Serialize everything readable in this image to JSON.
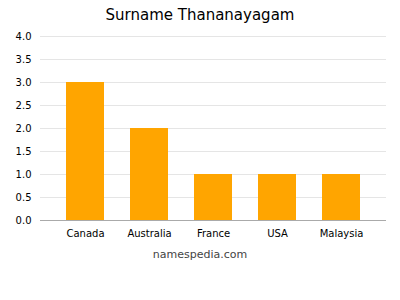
{
  "chart_data": {
    "type": "bar",
    "title": "Surname Thananayagam",
    "categories": [
      "Canada",
      "Australia",
      "France",
      "USA",
      "Malaysia"
    ],
    "values": [
      3,
      2,
      1,
      1,
      1
    ],
    "color": "#FFA500",
    "ylim": [
      0,
      4
    ],
    "yticks": [
      {
        "value": 0,
        "label": "0.0"
      },
      {
        "value": 0.5,
        "label": "0.5"
      },
      {
        "value": 1.0,
        "label": "1.0"
      },
      {
        "value": 1.5,
        "label": "1.5"
      },
      {
        "value": 2.0,
        "label": "2.0"
      },
      {
        "value": 2.5,
        "label": "2.5"
      },
      {
        "value": 3.0,
        "label": "3.0"
      },
      {
        "value": 3.5,
        "label": "3.5"
      },
      {
        "value": 4.0,
        "label": "4.0"
      }
    ],
    "grid": true,
    "annotations": [
      "namespedia.com"
    ]
  }
}
